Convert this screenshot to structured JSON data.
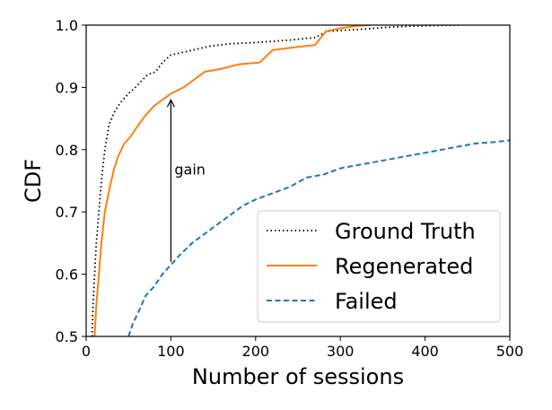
{
  "chart_data": {
    "type": "line",
    "title": "",
    "xlabel": "Number of sessions",
    "ylabel": "CDF",
    "xlim": [
      0,
      500
    ],
    "ylim": [
      0.5,
      1.0
    ],
    "xticks": [
      0,
      100,
      200,
      300,
      400,
      500
    ],
    "yticks": [
      0.5,
      0.6,
      0.7,
      0.8,
      0.9,
      1.0
    ],
    "xtick_labels": [
      "0",
      "100",
      "200",
      "300",
      "400",
      "500"
    ],
    "ytick_labels": [
      "0.5",
      "0.6",
      "0.7",
      "0.8",
      "0.9",
      "1.0"
    ],
    "grid": false,
    "legend_position": "lower-right",
    "series": [
      {
        "name": "Ground Truth",
        "style": "dotted",
        "color": "#000000",
        "points": [
          [
            7,
            0.5
          ],
          [
            8,
            0.55
          ],
          [
            10,
            0.6
          ],
          [
            12,
            0.65
          ],
          [
            15,
            0.7
          ],
          [
            18,
            0.75
          ],
          [
            22,
            0.8
          ],
          [
            27,
            0.84
          ],
          [
            33,
            0.86
          ],
          [
            40,
            0.875
          ],
          [
            50,
            0.89
          ],
          [
            58,
            0.9
          ],
          [
            65,
            0.91
          ],
          [
            72,
            0.92
          ],
          [
            82,
            0.925
          ],
          [
            90,
            0.94
          ],
          [
            100,
            0.952
          ],
          [
            120,
            0.958
          ],
          [
            145,
            0.966
          ],
          [
            170,
            0.97
          ],
          [
            200,
            0.972
          ],
          [
            240,
            0.976
          ],
          [
            270,
            0.98
          ],
          [
            285,
            0.99
          ],
          [
            320,
            0.993
          ],
          [
            360,
            0.997
          ],
          [
            400,
            0.999
          ],
          [
            440,
            1.0
          ]
        ]
      },
      {
        "name": "Regenerated",
        "style": "solid",
        "color": "#ff7f0e",
        "points": [
          [
            10,
            0.5
          ],
          [
            12,
            0.55
          ],
          [
            15,
            0.6
          ],
          [
            18,
            0.65
          ],
          [
            22,
            0.7
          ],
          [
            28,
            0.74
          ],
          [
            33,
            0.77
          ],
          [
            38,
            0.79
          ],
          [
            45,
            0.81
          ],
          [
            52,
            0.82
          ],
          [
            62,
            0.84
          ],
          [
            70,
            0.855
          ],
          [
            80,
            0.87
          ],
          [
            90,
            0.88
          ],
          [
            100,
            0.89
          ],
          [
            115,
            0.9
          ],
          [
            125,
            0.91
          ],
          [
            140,
            0.925
          ],
          [
            160,
            0.93
          ],
          [
            180,
            0.937
          ],
          [
            205,
            0.94
          ],
          [
            220,
            0.96
          ],
          [
            250,
            0.965
          ],
          [
            270,
            0.968
          ],
          [
            283,
            0.99
          ],
          [
            300,
            0.995
          ],
          [
            320,
            0.999
          ],
          [
            335,
            1.0
          ]
        ]
      },
      {
        "name": "Failed",
        "style": "dashed",
        "color": "#1f77b4",
        "points": [
          [
            50,
            0.5
          ],
          [
            55,
            0.52
          ],
          [
            62,
            0.54
          ],
          [
            70,
            0.565
          ],
          [
            80,
            0.58
          ],
          [
            90,
            0.6
          ],
          [
            100,
            0.615
          ],
          [
            110,
            0.63
          ],
          [
            125,
            0.65
          ],
          [
            140,
            0.665
          ],
          [
            155,
            0.68
          ],
          [
            170,
            0.695
          ],
          [
            185,
            0.71
          ],
          [
            200,
            0.72
          ],
          [
            220,
            0.73
          ],
          [
            240,
            0.74
          ],
          [
            260,
            0.755
          ],
          [
            280,
            0.76
          ],
          [
            300,
            0.77
          ],
          [
            320,
            0.775
          ],
          [
            340,
            0.78
          ],
          [
            360,
            0.785
          ],
          [
            380,
            0.79
          ],
          [
            400,
            0.795
          ],
          [
            420,
            0.8
          ],
          [
            440,
            0.805
          ],
          [
            460,
            0.81
          ],
          [
            480,
            0.812
          ],
          [
            500,
            0.815
          ]
        ]
      }
    ],
    "annotations": [
      {
        "text": "gain",
        "type": "arrow",
        "x": 100,
        "y_start": 0.62,
        "y_end": 0.88
      }
    ]
  }
}
